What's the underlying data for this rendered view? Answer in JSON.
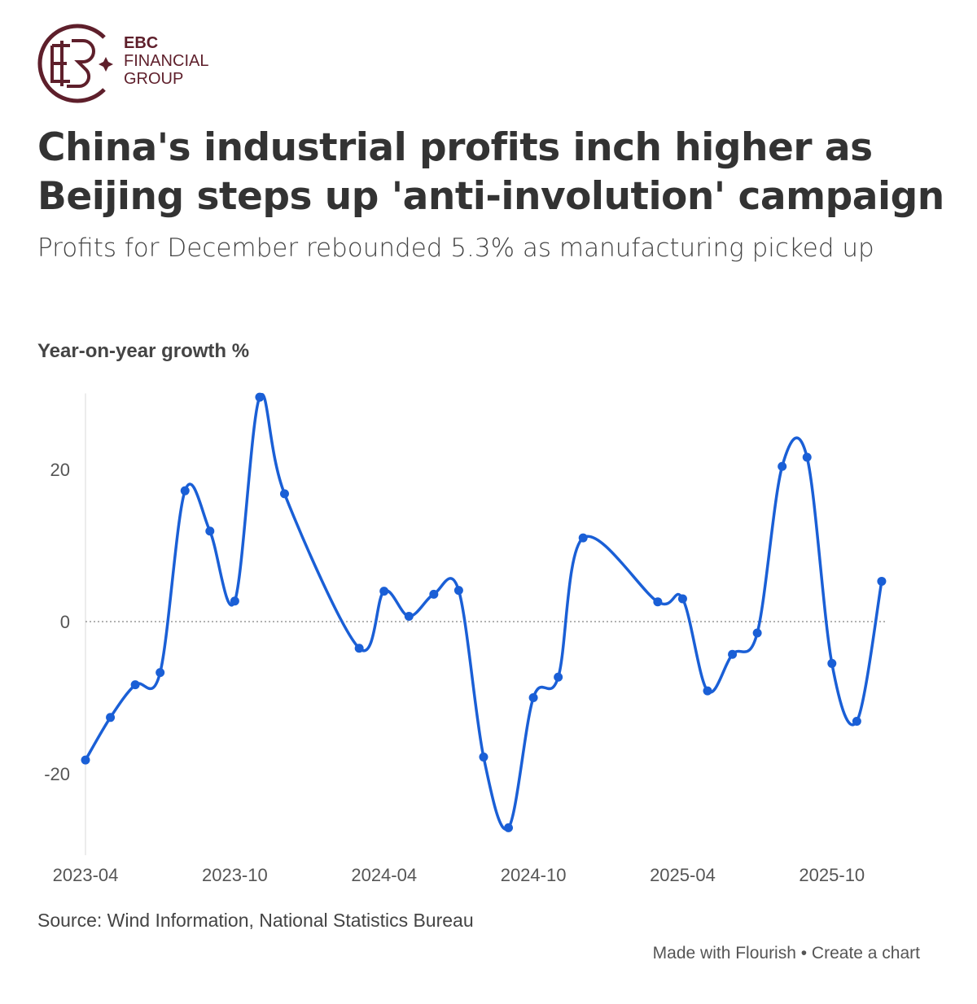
{
  "logo": {
    "line1": "EBC",
    "line2": "FINANCIAL",
    "line3": "GROUP",
    "color": "#5e1f2b"
  },
  "title": "China's industrial profits inch higher as Beijing steps up 'anti-involution' campaign",
  "subtitle": "Profits for December rebounded 5.3% as manufacturing picked up",
  "source": "Source: Wind Information, National Statistics Bureau",
  "credit": "Made with Flourish • Create a chart",
  "chart_data": {
    "type": "line",
    "title": "",
    "ylabel": "Year-on-year growth %",
    "xlabel": "",
    "ylim": [
      -29,
      30
    ],
    "yticks": [
      20,
      0,
      -20
    ],
    "xticks": [
      "2023-04",
      "2023-10",
      "2024-04",
      "2024-10",
      "2025-04",
      "2025-10"
    ],
    "zero_line": "dotted",
    "line_color": "#1a5fd6",
    "x": [
      "2023-04",
      "2023-05",
      "2023-06",
      "2023-07",
      "2023-08",
      "2023-09",
      "2023-10",
      "2023-11",
      "2023-12",
      "2024-03",
      "2024-04",
      "2024-05",
      "2024-06",
      "2024-07",
      "2024-08",
      "2024-09",
      "2024-10",
      "2024-11",
      "2024-12",
      "2025-03",
      "2025-04",
      "2025-05",
      "2025-06",
      "2025-07",
      "2025-08",
      "2025-09",
      "2025-10",
      "2025-11",
      "2025-12"
    ],
    "values": [
      -18.2,
      -12.6,
      -8.3,
      -6.7,
      17.2,
      11.9,
      2.7,
      29.5,
      16.8,
      -3.5,
      4.0,
      0.7,
      3.6,
      4.1,
      -17.8,
      -27.1,
      -10.0,
      -7.3,
      11.0,
      2.6,
      3.0,
      -9.1,
      -4.3,
      -1.5,
      20.4,
      21.6,
      -5.5,
      -13.1,
      5.3
    ]
  }
}
